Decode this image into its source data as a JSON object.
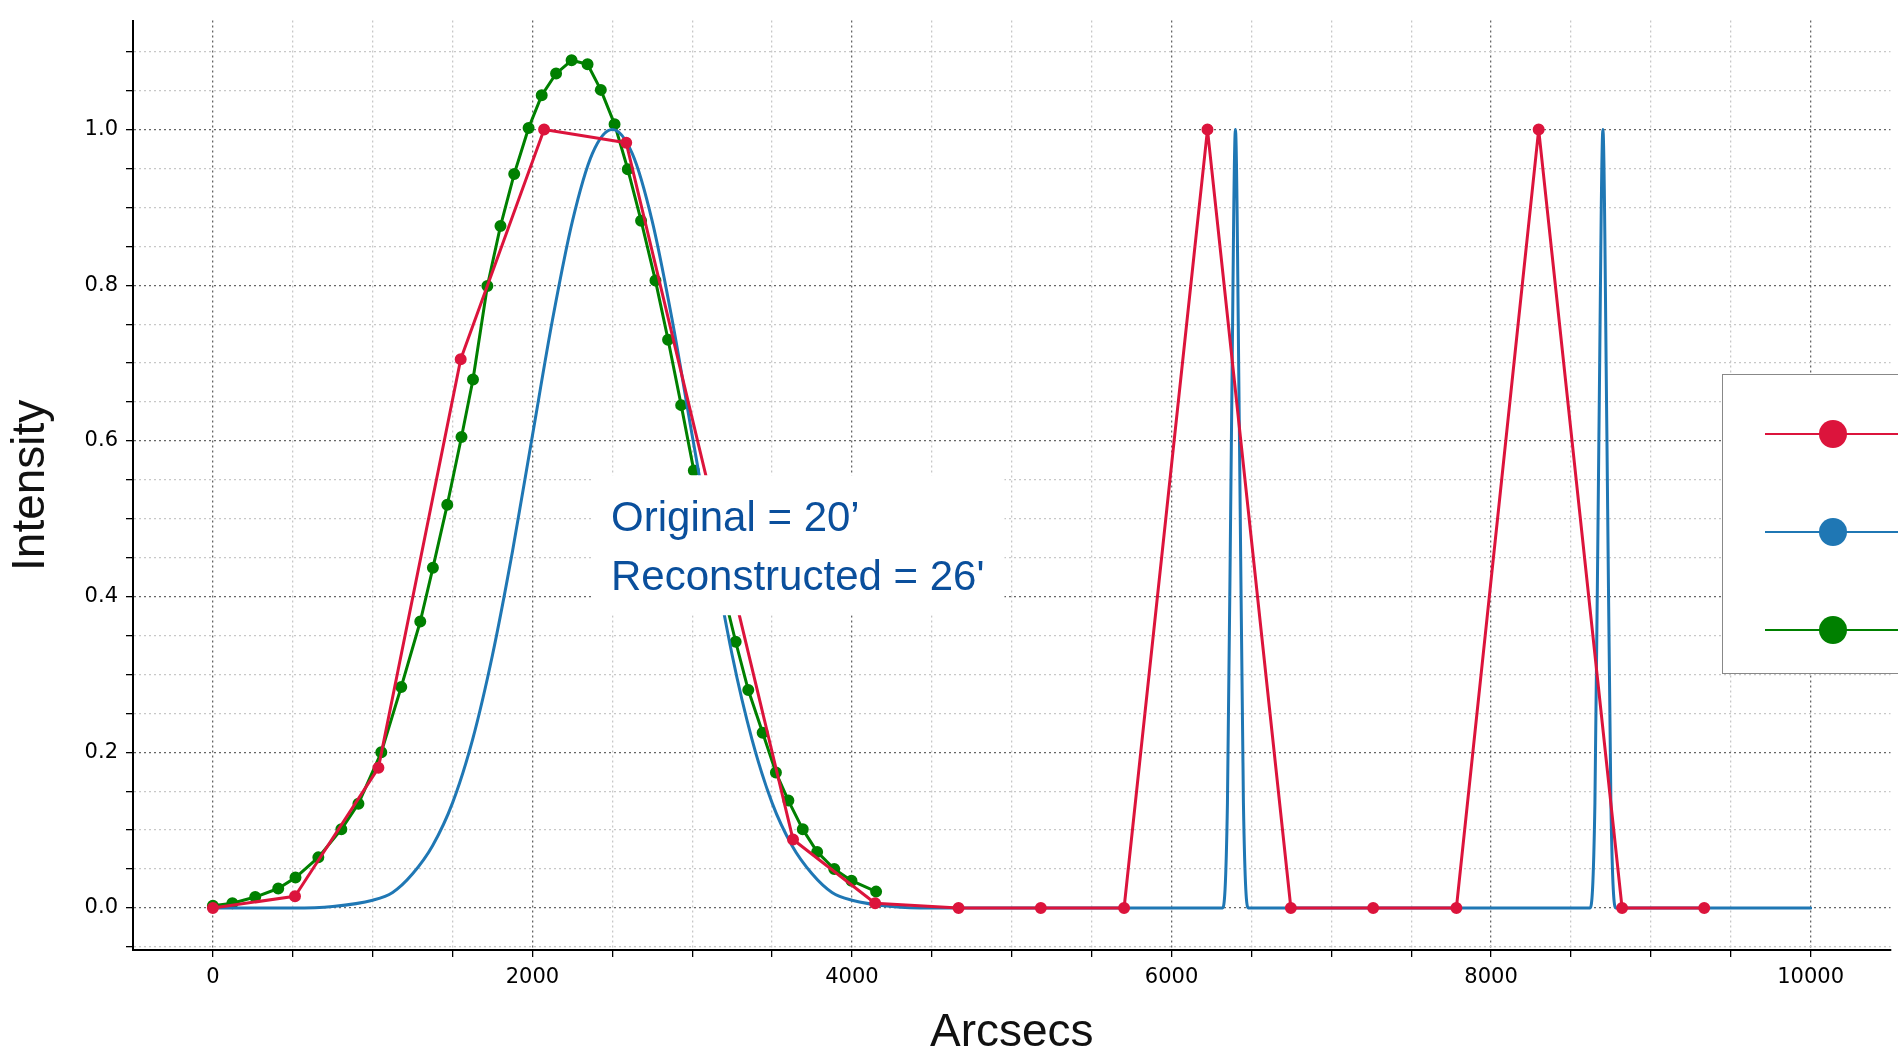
{
  "chart_data": {
    "type": "line",
    "xlabel": "Arcsecs",
    "ylabel": "Intensity",
    "grid": true,
    "annotations": [
      "Original = 20’\nReconstructed = 26'"
    ],
    "xlim": [
      -500,
      10500
    ],
    "xticks": [
      0,
      {
        "value": 500,
        "label": null
      },
      {
        "value": 1000,
        "label": null
      },
      {
        "value": 1500,
        "label": null
      },
      2000,
      {
        "value": 2500,
        "label": null
      },
      {
        "value": 3000,
        "label": null
      },
      {
        "value": 3500,
        "label": null
      },
      4000,
      {
        "value": 4500,
        "label": null
      },
      {
        "value": 5000,
        "label": null
      },
      {
        "value": 5500,
        "label": null
      },
      6000,
      {
        "value": 6500,
        "label": null
      },
      {
        "value": 7000,
        "label": null
      },
      {
        "value": 7500,
        "label": null
      },
      8000,
      {
        "value": 8500,
        "label": null
      },
      {
        "value": 9000,
        "label": null
      },
      {
        "value": 9500,
        "label": null
      },
      10000
    ],
    "ylim": [
      -0.054,
      1.14
    ],
    "yticks": [
      {
        "value": -0.05,
        "label": null
      },
      {
        "value": 0,
        "label": "0.0"
      },
      {
        "value": 0.05,
        "label": null
      },
      {
        "value": 0.1,
        "label": null
      },
      {
        "value": 0.15,
        "label": null
      },
      {
        "value": 0.2,
        "label": "0.2"
      },
      {
        "value": 0.25,
        "label": null
      },
      {
        "value": 0.3,
        "label": null
      },
      {
        "value": 0.35,
        "label": null
      },
      {
        "value": 0.4,
        "label": "0.4"
      },
      {
        "value": 0.45,
        "label": null
      },
      {
        "value": 0.5,
        "label": null
      },
      {
        "value": 0.55,
        "label": null
      },
      {
        "value": 0.6,
        "label": "0.6"
      },
      {
        "value": 0.65,
        "label": null
      },
      {
        "value": 0.7,
        "label": null
      },
      {
        "value": 0.75,
        "label": null
      },
      {
        "value": 0.8,
        "label": "0.8"
      },
      {
        "value": 0.85,
        "label": null
      },
      {
        "value": 0.9,
        "label": null
      },
      {
        "value": 0.95,
        "label": null
      },
      {
        "value": 1.0,
        "label": "1.0"
      },
      {
        "value": 1.05,
        "label": null
      },
      {
        "value": 1.1,
        "label": null
      }
    ],
    "series": [
      {
        "color": "#dc143c",
        "marker": "circle",
        "x": [
          0,
          514,
          1036,
          1551,
          2073,
          2587,
          3631,
          4145,
          4667,
          5182,
          5703,
          6225,
          6747,
          7262,
          7783,
          8298,
          8820,
          9334
        ],
        "values": [
          0,
          0.015,
          0.18,
          0.705,
          1.0,
          0.983,
          0.088,
          0.006,
          0,
          0,
          0,
          1.0,
          0,
          0,
          0,
          1.0,
          0,
          0
        ]
      },
      {
        "color": "#1f77b4",
        "marker": "none",
        "x": [
          0,
          250,
          500,
          750,
          1000,
          1125,
          1250,
          1375,
          1500,
          1625,
          1750,
          1875,
          2000,
          2125,
          2250,
          2375,
          2500,
          2625,
          2750,
          2875,
          3000,
          3125,
          3250,
          3375,
          3500,
          3625,
          3750,
          3875,
          4000,
          4250,
          4500,
          5000,
          6320,
          6350,
          6375,
          6400,
          6425,
          6450,
          6480,
          8620,
          8650,
          8675,
          8700,
          8725,
          8750,
          8780,
          10000
        ],
        "values": [
          0,
          0,
          0,
          0.002,
          0.01,
          0.02,
          0.044,
          0.08,
          0.135,
          0.216,
          0.325,
          0.458,
          0.607,
          0.755,
          0.882,
          0.969,
          1,
          0.969,
          0.882,
          0.755,
          0.607,
          null,
          0.325,
          0.216,
          0.135,
          0.08,
          0.044,
          0.02,
          0.01,
          0.002,
          0,
          0,
          0,
          0.135,
          0.607,
          1,
          0.607,
          0.135,
          0,
          0,
          0.135,
          0.607,
          1,
          0.607,
          0.135,
          0,
          0
        ]
      },
      {
        "color": "#008000",
        "marker": "circle",
        "x": [
          0,
          122,
          265,
          409,
          517,
          660,
          804,
          911,
          1054,
          1179,
          1298,
          1377,
          1467,
          1556,
          1628,
          1718,
          1800,
          1886,
          1976,
          2058,
          2148,
          2245,
          2345,
          2428,
          2514,
          2597,
          2680,
          2770,
          2849,
          2931,
          3010,
          3272,
          3351,
          3441,
          3524,
          3602,
          3692,
          3782,
          3889,
          3997,
          4151
        ],
        "values": [
          0.003,
          0.006,
          0.014,
          0.025,
          0.039,
          0.065,
          0.101,
          0.134,
          0.2,
          0.284,
          0.368,
          0.437,
          0.518,
          0.605,
          0.679,
          0.799,
          0.876,
          0.943,
          1.002,
          1.044,
          1.072,
          1.089,
          1.084,
          1.051,
          1.007,
          0.949,
          0.883,
          0.806,
          0.73,
          0.646,
          0.562,
          0.342,
          0.28,
          0.225,
          0.174,
          0.138,
          0.101,
          0.072,
          0.05,
          0.035,
          0.021
        ]
      }
    ]
  }
}
